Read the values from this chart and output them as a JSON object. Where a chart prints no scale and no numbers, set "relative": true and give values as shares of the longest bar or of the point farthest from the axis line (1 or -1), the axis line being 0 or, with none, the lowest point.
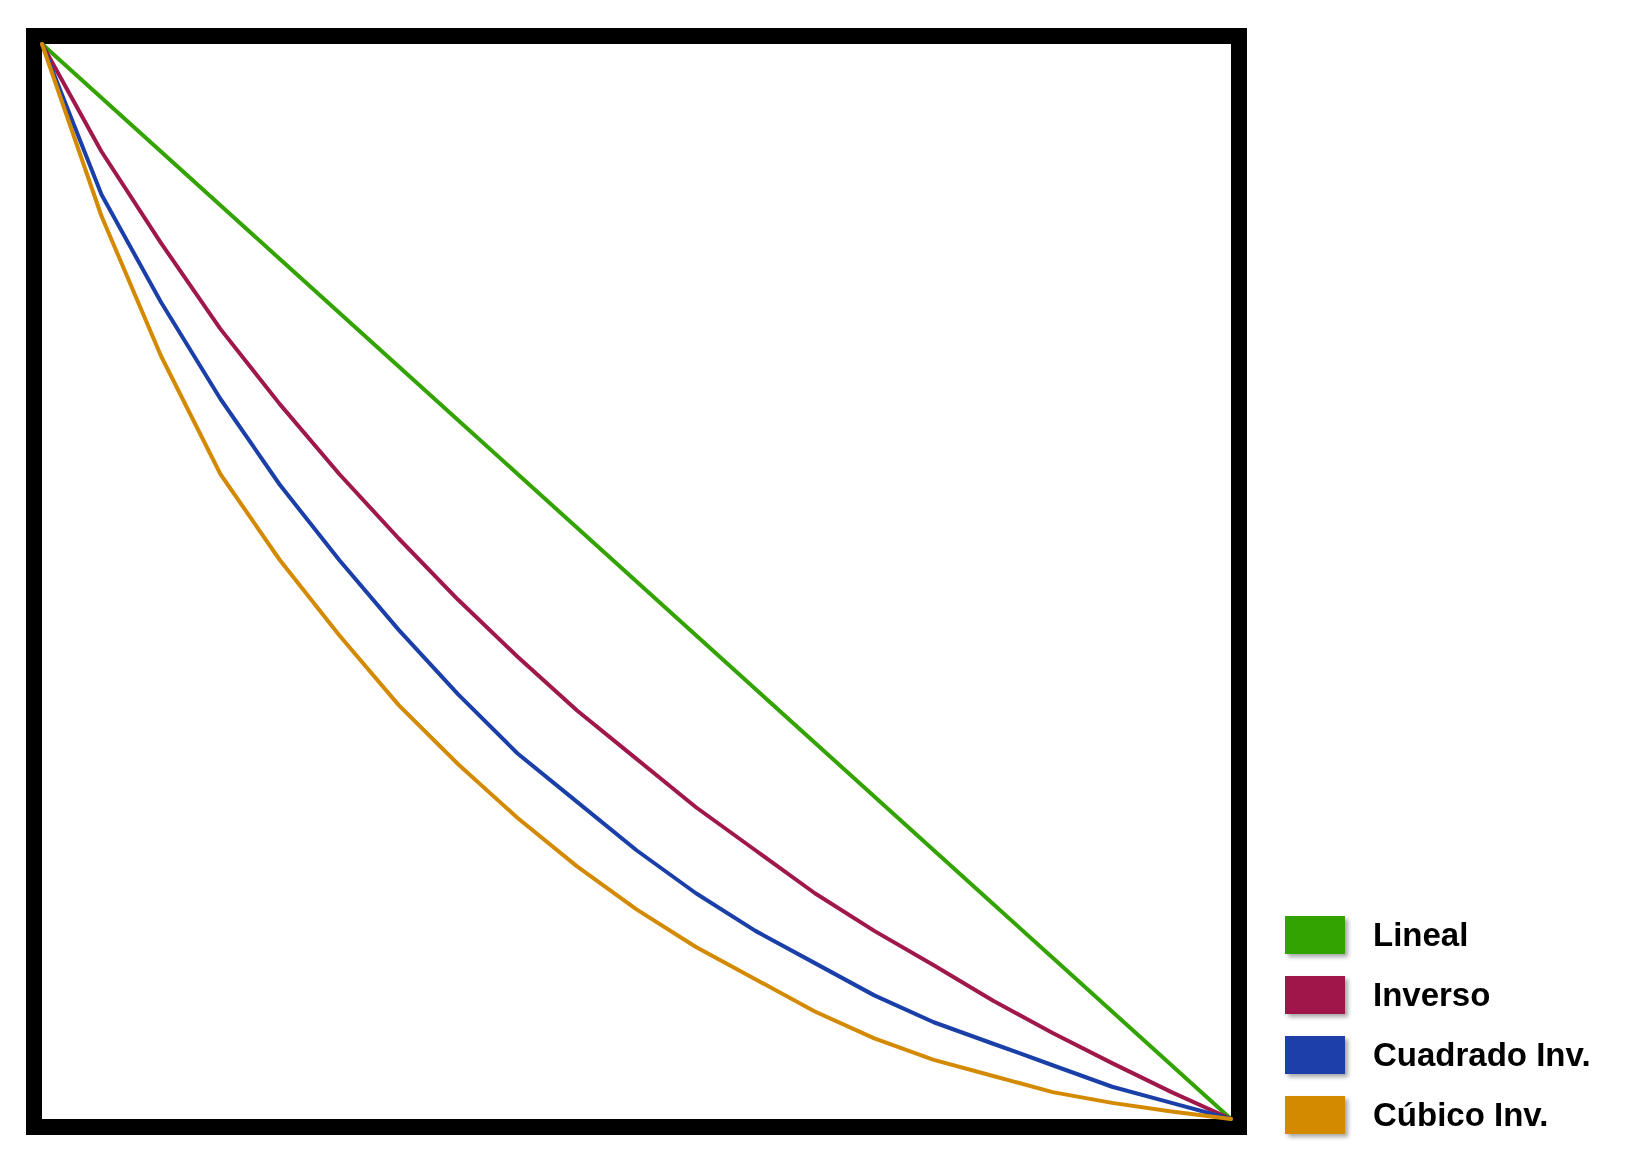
{
  "chart_data": {
    "type": "line",
    "relative": true,
    "legend": "bottom right",
    "line_style": "solid",
    "categories": [
      null,
      null,
      null,
      null,
      null,
      null,
      null,
      null,
      null,
      null,
      null,
      null,
      null,
      null,
      null,
      null,
      null,
      null,
      null,
      null,
      null
    ],
    "series": [
      {
        "name": "Lineal",
        "color": "#33a300",
        "values": [
          1,
          0.95,
          0.9,
          0.85,
          0.8,
          0.75,
          0.7,
          0.65,
          0.6,
          0.55,
          0.5,
          0.45,
          0.4,
          0.35,
          0.3,
          0.25,
          0.2,
          0.15,
          0.1,
          0.05,
          0
        ]
      },
      {
        "name": "Inverso",
        "color": "#a0184b",
        "values": [
          1,
          0.9,
          0.815,
          0.735,
          0.665,
          0.6,
          0.54,
          0.483,
          0.43,
          0.38,
          0.335,
          0.29,
          0.25,
          0.21,
          0.175,
          0.143,
          0.11,
          0.08,
          0.052,
          0.025,
          0
        ]
      },
      {
        "name": "Cuadrado Inv.",
        "color": "#1a3fa8",
        "values": [
          1,
          0.86,
          0.76,
          0.67,
          0.59,
          0.52,
          0.455,
          0.395,
          0.34,
          0.295,
          0.25,
          0.21,
          0.175,
          0.145,
          0.115,
          0.09,
          0.07,
          0.05,
          0.03,
          0.015,
          0
        ]
      },
      {
        "name": "Cúbico Inv.",
        "color": "#d48a00",
        "values": [
          1,
          0.84,
          0.71,
          0.6,
          0.52,
          0.45,
          0.385,
          0.33,
          0.28,
          0.235,
          0.195,
          0.16,
          0.13,
          0.1,
          0.075,
          0.055,
          0.04,
          0.025,
          0.015,
          0.007,
          0
        ]
      }
    ]
  }
}
